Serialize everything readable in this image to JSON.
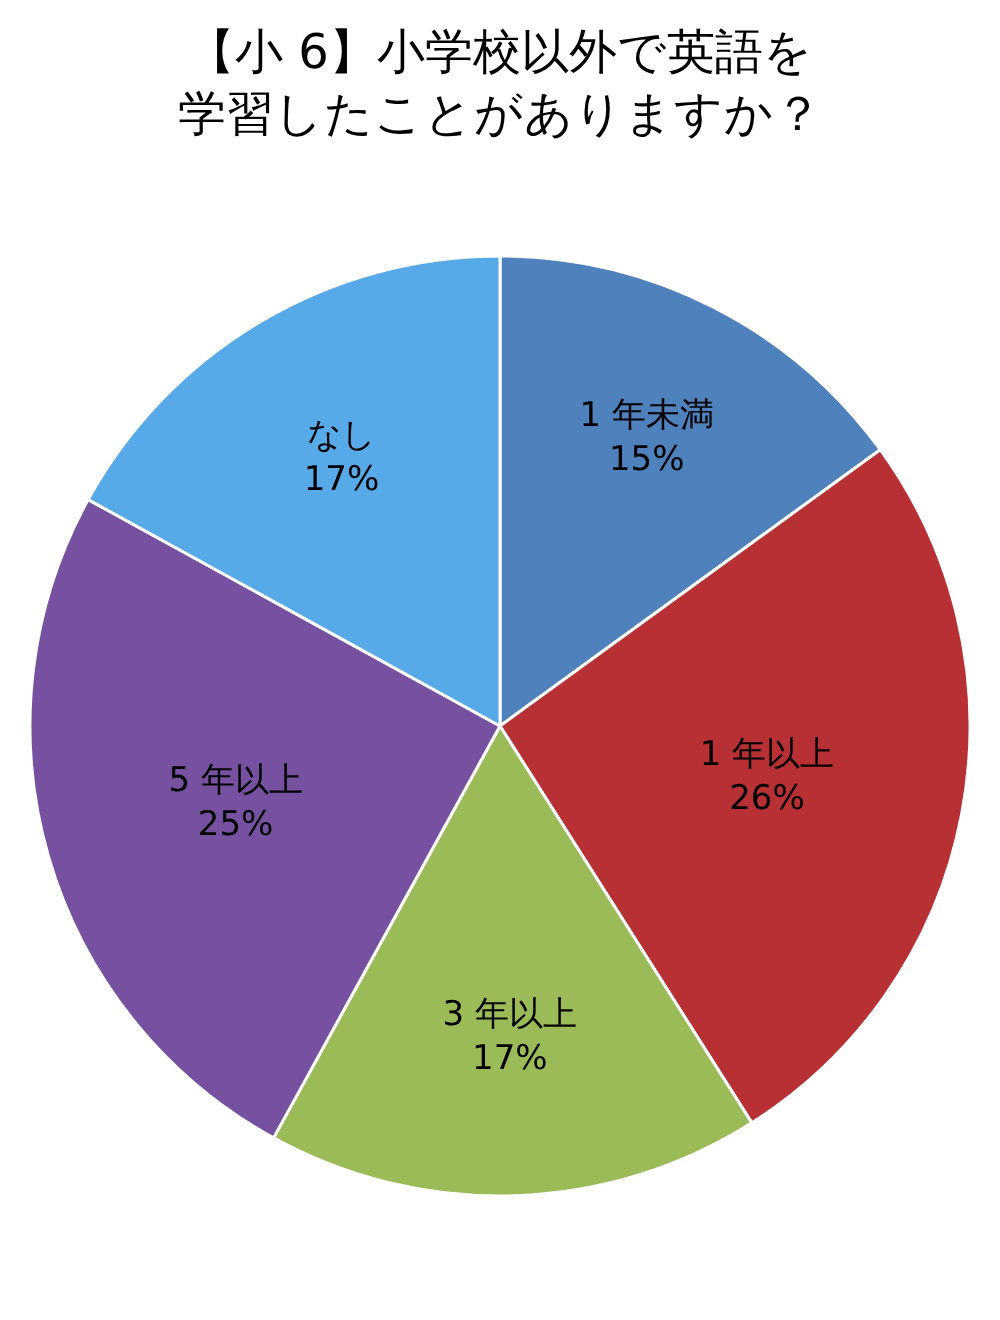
{
  "chart_data": {
    "type": "pie",
    "title": "【小 6】小学校以外で英語を学習したことがありますか？",
    "categories": [
      "1 年未満",
      "1 年以上",
      "3 年以上",
      "5 年以上",
      "なし"
    ],
    "values": [
      15,
      26,
      17,
      25,
      17
    ],
    "value_labels": [
      "15%",
      "26%",
      "17%",
      "25%",
      "17%"
    ],
    "colors": [
      "#4f81bd",
      "#b73033",
      "#9bbb59",
      "#7551a0",
      "#57a9e7"
    ]
  }
}
